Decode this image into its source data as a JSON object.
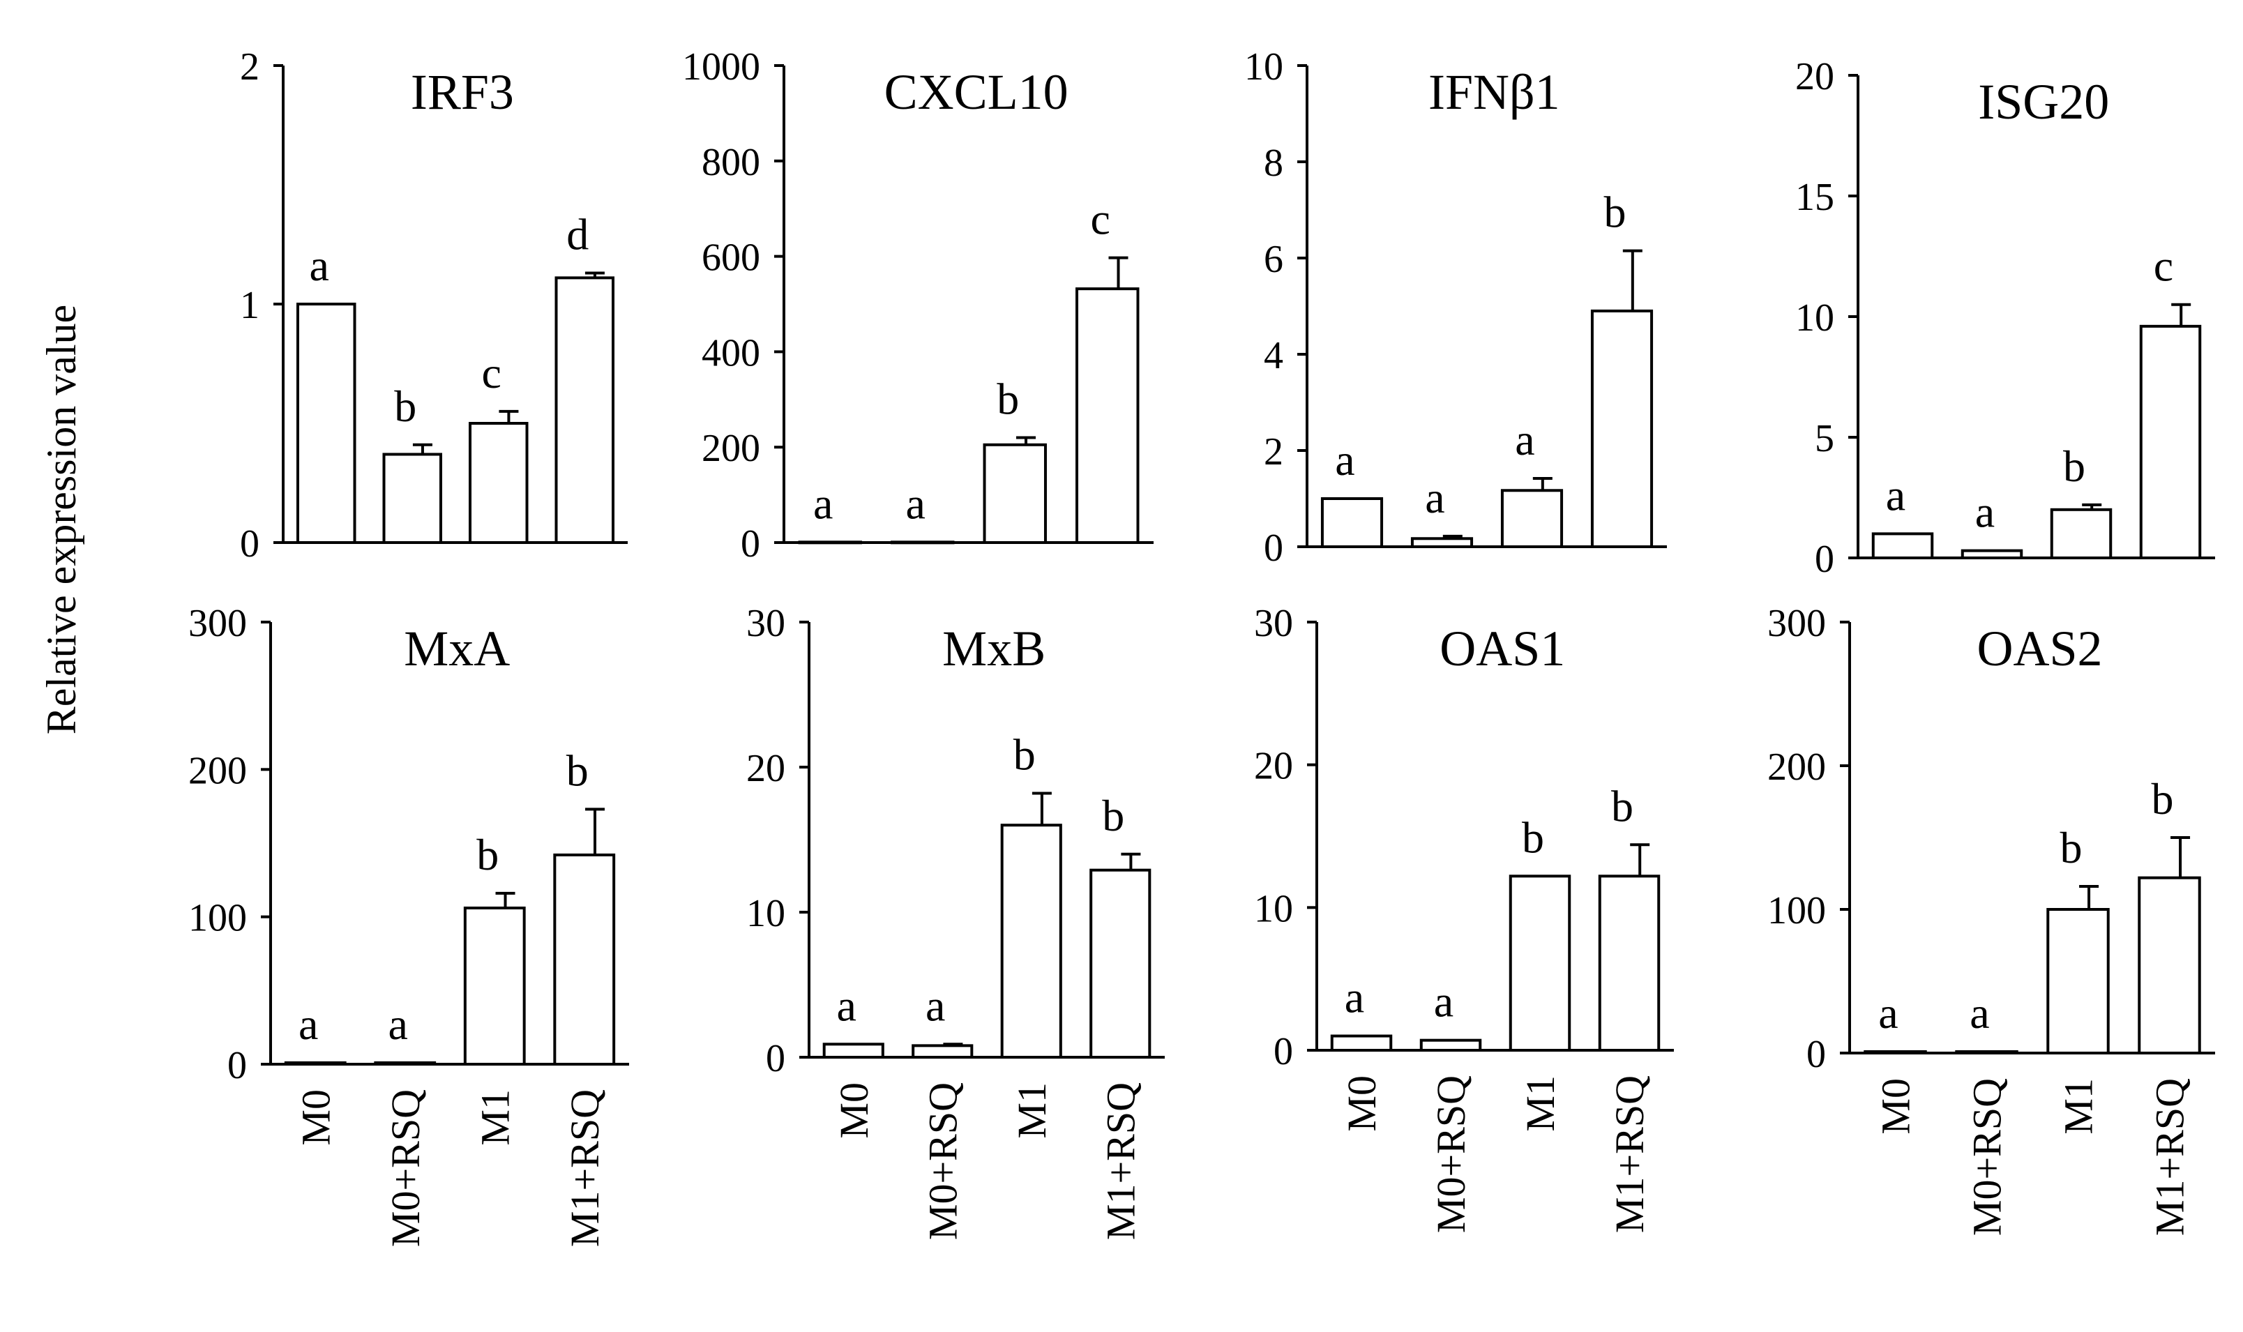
{
  "figure": {
    "ylabel": "Relative expression value",
    "categories": [
      "M0",
      "M0+RSQ",
      "M1",
      "M1+RSQ"
    ]
  },
  "chart_data": [
    {
      "type": "bar",
      "title": "IRF3",
      "categories": [
        "M0",
        "M0+RSQ",
        "M1",
        "M1+RSQ"
      ],
      "values": [
        1.0,
        0.37,
        0.5,
        1.11
      ],
      "errors": [
        0,
        0.04,
        0.05,
        0.02
      ],
      "significance": [
        "a",
        "b",
        "c",
        "d"
      ],
      "ylim": [
        0,
        2
      ],
      "yticks": [
        0,
        1,
        2
      ]
    },
    {
      "type": "bar",
      "title": "CXCL10",
      "categories": [
        "M0",
        "M0+RSQ",
        "M1",
        "M1+RSQ"
      ],
      "values": [
        1,
        1,
        205,
        532
      ],
      "errors": [
        0,
        0,
        15,
        65
      ],
      "significance": [
        "a",
        "a",
        "b",
        "c"
      ],
      "ylim": [
        0,
        1000
      ],
      "yticks": [
        0,
        200,
        400,
        600,
        800,
        1000
      ]
    },
    {
      "type": "bar",
      "title": "IFNβ1",
      "categories": [
        "M0",
        "M0+RSQ",
        "M1",
        "M1+RSQ"
      ],
      "values": [
        1.0,
        0.17,
        1.17,
        4.9
      ],
      "errors": [
        0,
        0.05,
        0.25,
        1.25
      ],
      "significance": [
        "a",
        "a",
        "a",
        "b"
      ],
      "ylim": [
        0,
        10
      ],
      "yticks": [
        0,
        2,
        4,
        6,
        8,
        10
      ]
    },
    {
      "type": "bar",
      "title": "ISG20",
      "categories": [
        "M0",
        "M0+RSQ",
        "M1",
        "M1+RSQ"
      ],
      "values": [
        1.0,
        0.3,
        2.0,
        9.6
      ],
      "errors": [
        0,
        0,
        0.2,
        0.9
      ],
      "significance": [
        "a",
        "a",
        "b",
        "c"
      ],
      "ylim": [
        0,
        20
      ],
      "yticks": [
        0,
        5,
        10,
        15,
        20
      ]
    },
    {
      "type": "bar",
      "title": "MxA",
      "categories": [
        "M0",
        "M0+RSQ",
        "M1",
        "M1+RSQ"
      ],
      "values": [
        1,
        1,
        106,
        142
      ],
      "errors": [
        0,
        0,
        10,
        31
      ],
      "significance": [
        "a",
        "a",
        "b",
        "b"
      ],
      "ylim": [
        0,
        300
      ],
      "yticks": [
        0,
        100,
        200,
        300
      ]
    },
    {
      "type": "bar",
      "title": "MxB",
      "categories": [
        "M0",
        "M0+RSQ",
        "M1",
        "M1+RSQ"
      ],
      "values": [
        0.9,
        0.8,
        16.0,
        12.9
      ],
      "errors": [
        0,
        0.1,
        2.2,
        1.1
      ],
      "significance": [
        "a",
        "a",
        "b",
        "b"
      ],
      "ylim": [
        0,
        30
      ],
      "yticks": [
        0,
        10,
        20,
        30
      ]
    },
    {
      "type": "bar",
      "title": "OAS1",
      "categories": [
        "M0",
        "M0+RSQ",
        "M1",
        "M1+RSQ"
      ],
      "values": [
        1.0,
        0.7,
        12.2,
        12.2
      ],
      "errors": [
        0,
        0,
        0,
        2.2
      ],
      "significance": [
        "a",
        "a",
        "b",
        "b"
      ],
      "ylim": [
        0,
        30
      ],
      "yticks": [
        0,
        10,
        20,
        30
      ]
    },
    {
      "type": "bar",
      "title": "OAS2",
      "categories": [
        "M0",
        "M0+RSQ",
        "M1",
        "M1+RSQ"
      ],
      "values": [
        1,
        1,
        100,
        122
      ],
      "errors": [
        0,
        0,
        16,
        28
      ],
      "significance": [
        "a",
        "a",
        "b",
        "b"
      ],
      "ylim": [
        0,
        300
      ],
      "yticks": [
        0,
        100,
        200,
        300
      ]
    }
  ]
}
